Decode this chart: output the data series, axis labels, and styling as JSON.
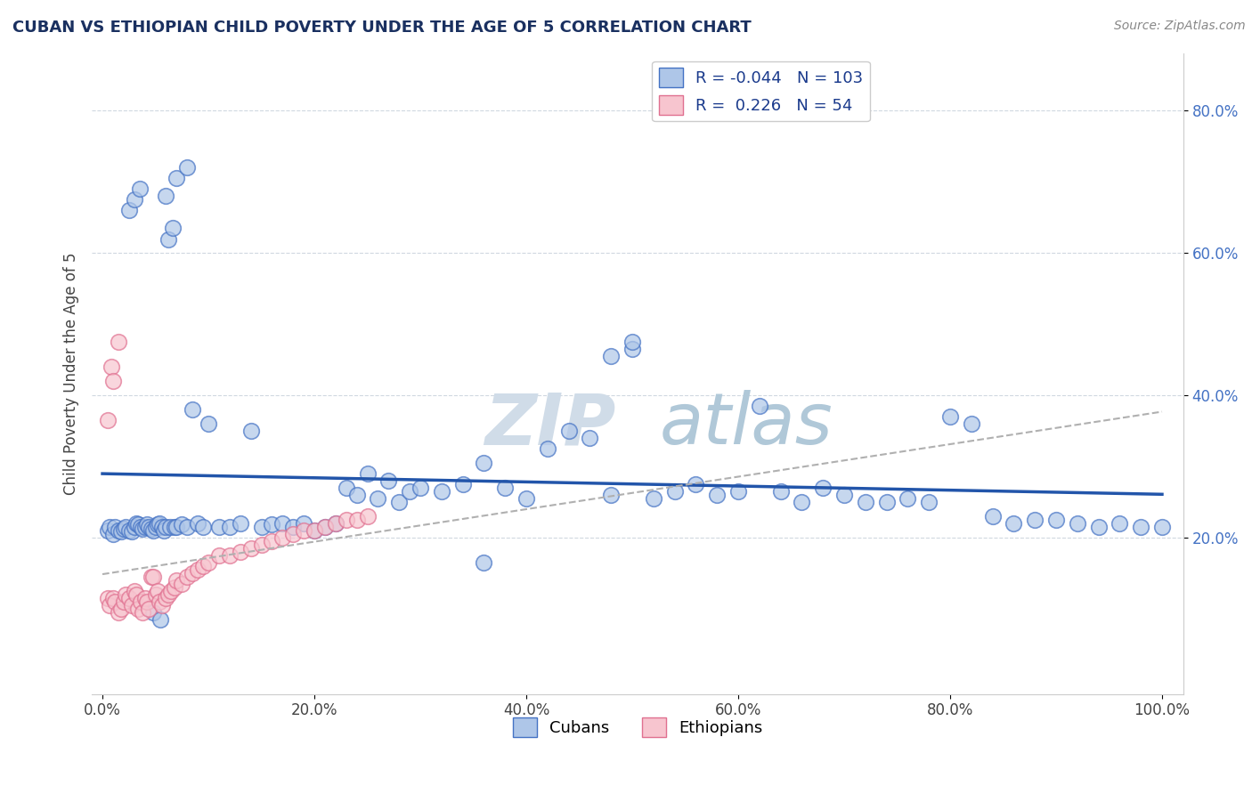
{
  "title": "CUBAN VS ETHIOPIAN CHILD POVERTY UNDER THE AGE OF 5 CORRELATION CHART",
  "source": "Source: ZipAtlas.com",
  "ylabel": "Child Poverty Under the Age of 5",
  "xlim": [
    -0.01,
    1.02
  ],
  "ylim": [
    -0.02,
    0.88
  ],
  "x_ticks": [
    0.0,
    0.2,
    0.4,
    0.6,
    0.8,
    1.0
  ],
  "x_tick_labels": [
    "0.0%",
    "20.0%",
    "40.0%",
    "60.0%",
    "80.0%",
    "100.0%"
  ],
  "y_ticks": [
    0.2,
    0.4,
    0.6,
    0.8
  ],
  "y_tick_labels": [
    "20.0%",
    "40.0%",
    "60.0%",
    "80.0%"
  ],
  "cuban_R": -0.044,
  "cuban_N": 103,
  "ethiopian_R": 0.226,
  "ethiopian_N": 54,
  "cuban_color": "#aec6e8",
  "cuban_edge_color": "#4472c4",
  "ethiopian_color": "#f7c5cf",
  "ethiopian_edge_color": "#e07090",
  "cuban_line_color": "#2255aa",
  "ethiopian_line_color": "#c8808080",
  "watermark_color": "#d0dce8",
  "background_color": "#ffffff",
  "grid_color": "#d0d8e0",
  "cuban_x": [
    0.005,
    0.007,
    0.01,
    0.012,
    0.015,
    0.018,
    0.02,
    0.022,
    0.025,
    0.028,
    0.03,
    0.032,
    0.034,
    0.036,
    0.038,
    0.04,
    0.042,
    0.044,
    0.046,
    0.048,
    0.05,
    0.052,
    0.054,
    0.056,
    0.058,
    0.06,
    0.062,
    0.064,
    0.066,
    0.068,
    0.07,
    0.075,
    0.08,
    0.085,
    0.09,
    0.095,
    0.1,
    0.11,
    0.12,
    0.13,
    0.14,
    0.15,
    0.16,
    0.17,
    0.18,
    0.19,
    0.2,
    0.21,
    0.22,
    0.23,
    0.24,
    0.25,
    0.26,
    0.27,
    0.28,
    0.29,
    0.3,
    0.32,
    0.34,
    0.36,
    0.38,
    0.4,
    0.42,
    0.44,
    0.46,
    0.48,
    0.5,
    0.52,
    0.54,
    0.56,
    0.58,
    0.6,
    0.62,
    0.64,
    0.66,
    0.68,
    0.7,
    0.72,
    0.74,
    0.76,
    0.78,
    0.8,
    0.82,
    0.84,
    0.86,
    0.88,
    0.9,
    0.92,
    0.94,
    0.96,
    0.98,
    1.0,
    0.048,
    0.055,
    0.36,
    0.48,
    0.5,
    0.07,
    0.08,
    0.06,
    0.025,
    0.03,
    0.035
  ],
  "cuban_y": [
    0.21,
    0.215,
    0.205,
    0.215,
    0.21,
    0.208,
    0.212,
    0.215,
    0.21,
    0.208,
    0.215,
    0.22,
    0.218,
    0.215,
    0.212,
    0.215,
    0.218,
    0.215,
    0.212,
    0.21,
    0.215,
    0.218,
    0.22,
    0.215,
    0.21,
    0.215,
    0.618,
    0.215,
    0.635,
    0.215,
    0.215,
    0.218,
    0.215,
    0.38,
    0.22,
    0.215,
    0.36,
    0.215,
    0.215,
    0.22,
    0.35,
    0.215,
    0.218,
    0.22,
    0.215,
    0.22,
    0.21,
    0.215,
    0.22,
    0.27,
    0.26,
    0.29,
    0.255,
    0.28,
    0.25,
    0.265,
    0.27,
    0.265,
    0.275,
    0.305,
    0.27,
    0.255,
    0.325,
    0.35,
    0.34,
    0.455,
    0.465,
    0.255,
    0.265,
    0.275,
    0.26,
    0.265,
    0.385,
    0.265,
    0.25,
    0.27,
    0.26,
    0.25,
    0.25,
    0.255,
    0.25,
    0.37,
    0.36,
    0.23,
    0.22,
    0.225,
    0.225,
    0.22,
    0.215,
    0.22,
    0.215,
    0.215,
    0.095,
    0.085,
    0.165,
    0.26,
    0.475,
    0.705,
    0.72,
    0.68,
    0.66,
    0.675,
    0.69
  ],
  "ethiopian_x": [
    0.005,
    0.007,
    0.01,
    0.012,
    0.015,
    0.018,
    0.02,
    0.022,
    0.025,
    0.028,
    0.03,
    0.032,
    0.034,
    0.036,
    0.038,
    0.04,
    0.042,
    0.044,
    0.046,
    0.048,
    0.05,
    0.052,
    0.054,
    0.056,
    0.06,
    0.062,
    0.065,
    0.068,
    0.07,
    0.075,
    0.08,
    0.085,
    0.09,
    0.095,
    0.1,
    0.11,
    0.12,
    0.13,
    0.14,
    0.15,
    0.16,
    0.17,
    0.18,
    0.19,
    0.2,
    0.21,
    0.22,
    0.23,
    0.24,
    0.25,
    0.005,
    0.008,
    0.01,
    0.015
  ],
  "ethiopian_y": [
    0.115,
    0.105,
    0.115,
    0.11,
    0.095,
    0.1,
    0.11,
    0.12,
    0.115,
    0.105,
    0.125,
    0.12,
    0.1,
    0.11,
    0.095,
    0.115,
    0.11,
    0.1,
    0.145,
    0.145,
    0.12,
    0.125,
    0.11,
    0.105,
    0.115,
    0.12,
    0.125,
    0.13,
    0.14,
    0.135,
    0.145,
    0.15,
    0.155,
    0.16,
    0.165,
    0.175,
    0.175,
    0.18,
    0.185,
    0.19,
    0.195,
    0.2,
    0.205,
    0.21,
    0.21,
    0.215,
    0.22,
    0.225,
    0.225,
    0.23,
    0.365,
    0.44,
    0.42,
    0.475
  ]
}
